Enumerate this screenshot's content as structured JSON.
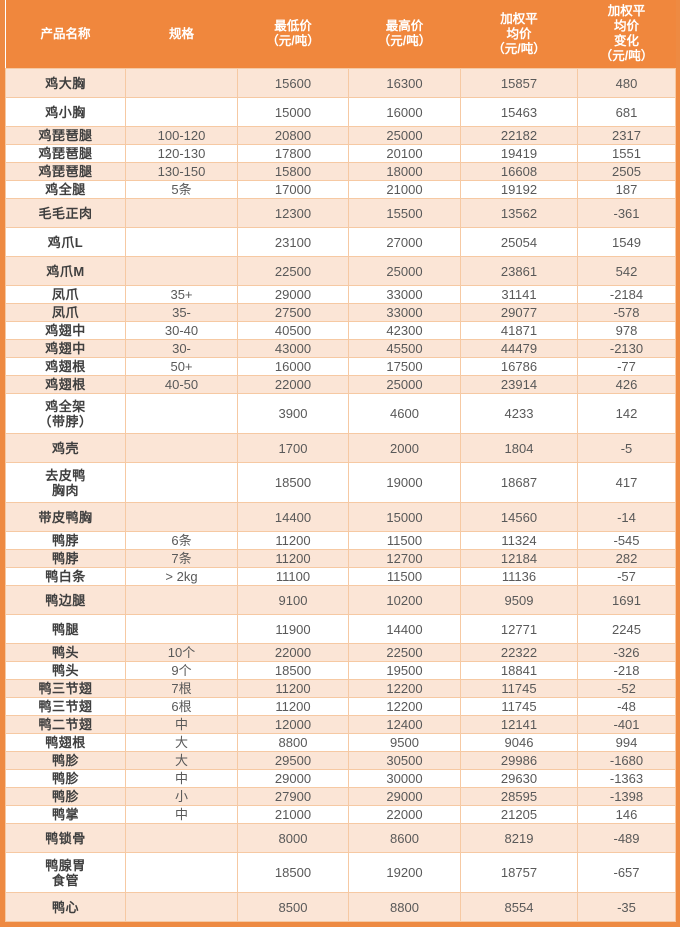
{
  "colors": {
    "header_bg": "#f0873d",
    "header_text": "#ffffff",
    "row_alt_bg": "#fbe5d6",
    "row_bg": "#ffffff",
    "cell_border": "#f6c9a3",
    "outer_border": "#ee8a42",
    "name_text": "#3f3f3f",
    "value_text": "#595959"
  },
  "table": {
    "columns": [
      {
        "label": "产品名称"
      },
      {
        "label": "规格"
      },
      {
        "label": "最低价\n（元/吨）"
      },
      {
        "label": "最高价\n（元/吨）"
      },
      {
        "label": "加权平\n均价\n（元/吨）"
      },
      {
        "label": "加权平\n均价\n变化\n（元/吨）"
      }
    ],
    "rows": [
      {
        "name": "鸡大胸",
        "spec": "",
        "min": "15600",
        "max": "16300",
        "avg": "15857",
        "change": "480",
        "size": "m"
      },
      {
        "name": "鸡小胸",
        "spec": "",
        "min": "15000",
        "max": "16000",
        "avg": "15463",
        "change": "681",
        "size": "m"
      },
      {
        "name": "鸡琵琶腿",
        "spec": "100-120",
        "min": "20800",
        "max": "25000",
        "avg": "22182",
        "change": "2317",
        "size": "s"
      },
      {
        "name": "鸡琵琶腿",
        "spec": "120-130",
        "min": "17800",
        "max": "20100",
        "avg": "19419",
        "change": "1551",
        "size": "s"
      },
      {
        "name": "鸡琵琶腿",
        "spec": "130-150",
        "min": "15800",
        "max": "18000",
        "avg": "16608",
        "change": "2505",
        "size": "s"
      },
      {
        "name": "鸡全腿",
        "spec": "5条",
        "min": "17000",
        "max": "21000",
        "avg": "19192",
        "change": "187",
        "size": "s"
      },
      {
        "name": "毛毛正肉",
        "spec": "",
        "min": "12300",
        "max": "15500",
        "avg": "13562",
        "change": "-361",
        "size": "m"
      },
      {
        "name": "鸡爪L",
        "spec": "",
        "min": "23100",
        "max": "27000",
        "avg": "25054",
        "change": "1549",
        "size": "m"
      },
      {
        "name": "鸡爪M",
        "spec": "",
        "min": "22500",
        "max": "25000",
        "avg": "23861",
        "change": "542",
        "size": "m"
      },
      {
        "name": "凤爪",
        "spec": "35+",
        "min": "29000",
        "max": "33000",
        "avg": "31141",
        "change": "-2184",
        "size": "s"
      },
      {
        "name": "凤爪",
        "spec": "35-",
        "min": "27500",
        "max": "33000",
        "avg": "29077",
        "change": "-578",
        "size": "s"
      },
      {
        "name": "鸡翅中",
        "spec": "30-40",
        "min": "40500",
        "max": "42300",
        "avg": "41871",
        "change": "978",
        "size": "s"
      },
      {
        "name": "鸡翅中",
        "spec": "30-",
        "min": "43000",
        "max": "45500",
        "avg": "44479",
        "change": "-2130",
        "size": "s"
      },
      {
        "name": "鸡翅根",
        "spec": "50+",
        "min": "16000",
        "max": "17500",
        "avg": "16786",
        "change": "-77",
        "size": "s"
      },
      {
        "name": "鸡翅根",
        "spec": "40-50",
        "min": "22000",
        "max": "25000",
        "avg": "23914",
        "change": "426",
        "size": "s"
      },
      {
        "name": "鸡全架\n（带脖）",
        "spec": "",
        "min": "3900",
        "max": "4600",
        "avg": "4233",
        "change": "142",
        "size": "l"
      },
      {
        "name": "鸡壳",
        "spec": "",
        "min": "1700",
        "max": "2000",
        "avg": "1804",
        "change": "-5",
        "size": "m"
      },
      {
        "name": "去皮鸭\n胸肉",
        "spec": "",
        "min": "18500",
        "max": "19000",
        "avg": "18687",
        "change": "417",
        "size": "l"
      },
      {
        "name": "带皮鸭胸",
        "spec": "",
        "min": "14400",
        "max": "15000",
        "avg": "14560",
        "change": "-14",
        "size": "m"
      },
      {
        "name": "鸭脖",
        "spec": "6条",
        "min": "11200",
        "max": "11500",
        "avg": "11324",
        "change": "-545",
        "size": "s"
      },
      {
        "name": "鸭脖",
        "spec": "7条",
        "min": "11200",
        "max": "12700",
        "avg": "12184",
        "change": "282",
        "size": "s"
      },
      {
        "name": "鸭白条",
        "spec": "> 2kg",
        "min": "11100",
        "max": "11500",
        "avg": "11136",
        "change": "-57",
        "size": "s"
      },
      {
        "name": "鸭边腿",
        "spec": "",
        "min": "9100",
        "max": "10200",
        "avg": "9509",
        "change": "1691",
        "size": "m"
      },
      {
        "name": "鸭腿",
        "spec": "",
        "min": "11900",
        "max": "14400",
        "avg": "12771",
        "change": "2245",
        "size": "m"
      },
      {
        "name": "鸭头",
        "spec": "10个",
        "min": "22000",
        "max": "22500",
        "avg": "22322",
        "change": "-326",
        "size": "s"
      },
      {
        "name": "鸭头",
        "spec": "9个",
        "min": "18500",
        "max": "19500",
        "avg": "18841",
        "change": "-218",
        "size": "s"
      },
      {
        "name": "鸭三节翅",
        "spec": "7根",
        "min": "11200",
        "max": "12200",
        "avg": "11745",
        "change": "-52",
        "size": "s"
      },
      {
        "name": "鸭三节翅",
        "spec": "6根",
        "min": "11200",
        "max": "12200",
        "avg": "11745",
        "change": "-48",
        "size": "s"
      },
      {
        "name": "鸭二节翅",
        "spec": "中",
        "min": "12000",
        "max": "12400",
        "avg": "12141",
        "change": "-401",
        "size": "s"
      },
      {
        "name": "鸭翅根",
        "spec": "大",
        "min": "8800",
        "max": "9500",
        "avg": "9046",
        "change": "994",
        "size": "s"
      },
      {
        "name": "鸭胗",
        "spec": "大",
        "min": "29500",
        "max": "30500",
        "avg": "29986",
        "change": "-1680",
        "size": "s"
      },
      {
        "name": "鸭胗",
        "spec": "中",
        "min": "29000",
        "max": "30000",
        "avg": "29630",
        "change": "-1363",
        "size": "s"
      },
      {
        "name": "鸭胗",
        "spec": "小",
        "min": "27900",
        "max": "29000",
        "avg": "28595",
        "change": "-1398",
        "size": "s"
      },
      {
        "name": "鸭掌",
        "spec": "中",
        "min": "21000",
        "max": "22000",
        "avg": "21205",
        "change": "146",
        "size": "s"
      },
      {
        "name": "鸭锁骨",
        "spec": "",
        "min": "8000",
        "max": "8600",
        "avg": "8219",
        "change": "-489",
        "size": "m"
      },
      {
        "name": "鸭腺胃\n食管",
        "spec": "",
        "min": "18500",
        "max": "19200",
        "avg": "18757",
        "change": "-657",
        "size": "l"
      },
      {
        "name": "鸭心",
        "spec": "",
        "min": "8500",
        "max": "8800",
        "avg": "8554",
        "change": "-35",
        "size": "m"
      }
    ]
  }
}
